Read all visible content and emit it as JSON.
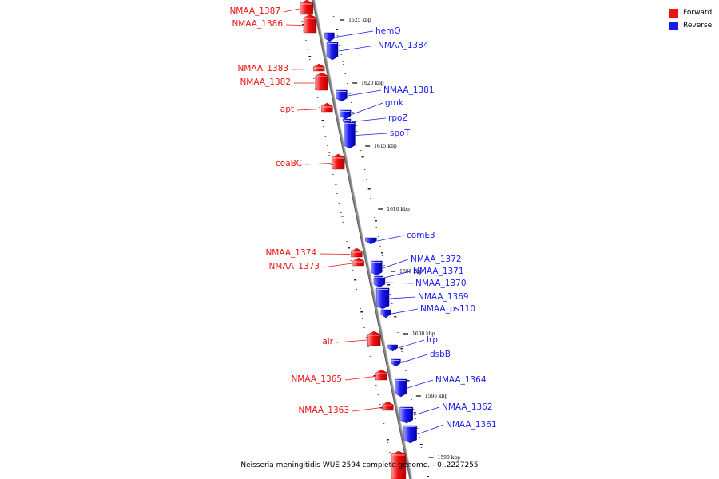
{
  "legend": {
    "forward_label": "Forward",
    "reverse_label": "Reverse",
    "forward_color": "#ee1111",
    "reverse_color": "#1a1aee"
  },
  "caption": "Neisseria meningitidis WUE 2594 complete genome. - 0..2227255",
  "colors": {
    "backbone": "#888888",
    "forward": "#ee1111",
    "reverse": "#1a1aee",
    "tick": "#000000"
  },
  "ticks": [
    {
      "label": "1625 kbp"
    },
    {
      "label": "1620 kbp"
    },
    {
      "label": "1615 kbp"
    },
    {
      "label": "1610 kbp"
    },
    {
      "label": "1605 kbp"
    },
    {
      "label": "1600 kbp"
    },
    {
      "label": "1595 kbp"
    },
    {
      "label": "1590 kbp"
    }
  ],
  "forward_genes": [
    {
      "name": "NMAA_1387"
    },
    {
      "name": "NMAA_1386"
    },
    {
      "name": "NMAA_1383"
    },
    {
      "name": "NMAA_1382"
    },
    {
      "name": "apt"
    },
    {
      "name": "coaBC"
    },
    {
      "name": "NMAA_1374"
    },
    {
      "name": "NMAA_1373"
    },
    {
      "name": "alr"
    },
    {
      "name": "NMAA_1365"
    },
    {
      "name": "NMAA_1363"
    }
  ],
  "reverse_genes": [
    {
      "name": "hemO"
    },
    {
      "name": "NMAA_1384"
    },
    {
      "name": "NMAA_1381"
    },
    {
      "name": "gmk"
    },
    {
      "name": "rpoZ"
    },
    {
      "name": "spoT"
    },
    {
      "name": "comE3"
    },
    {
      "name": "NMAA_1372"
    },
    {
      "name": "NMAA_1371"
    },
    {
      "name": "NMAA_1370"
    },
    {
      "name": "NMAA_1369"
    },
    {
      "name": "NMAA_ps110"
    },
    {
      "name": "lrp"
    },
    {
      "name": "dsbB"
    },
    {
      "name": "NMAA_1364"
    },
    {
      "name": "NMAA_1362"
    },
    {
      "name": "NMAA_1361"
    }
  ]
}
